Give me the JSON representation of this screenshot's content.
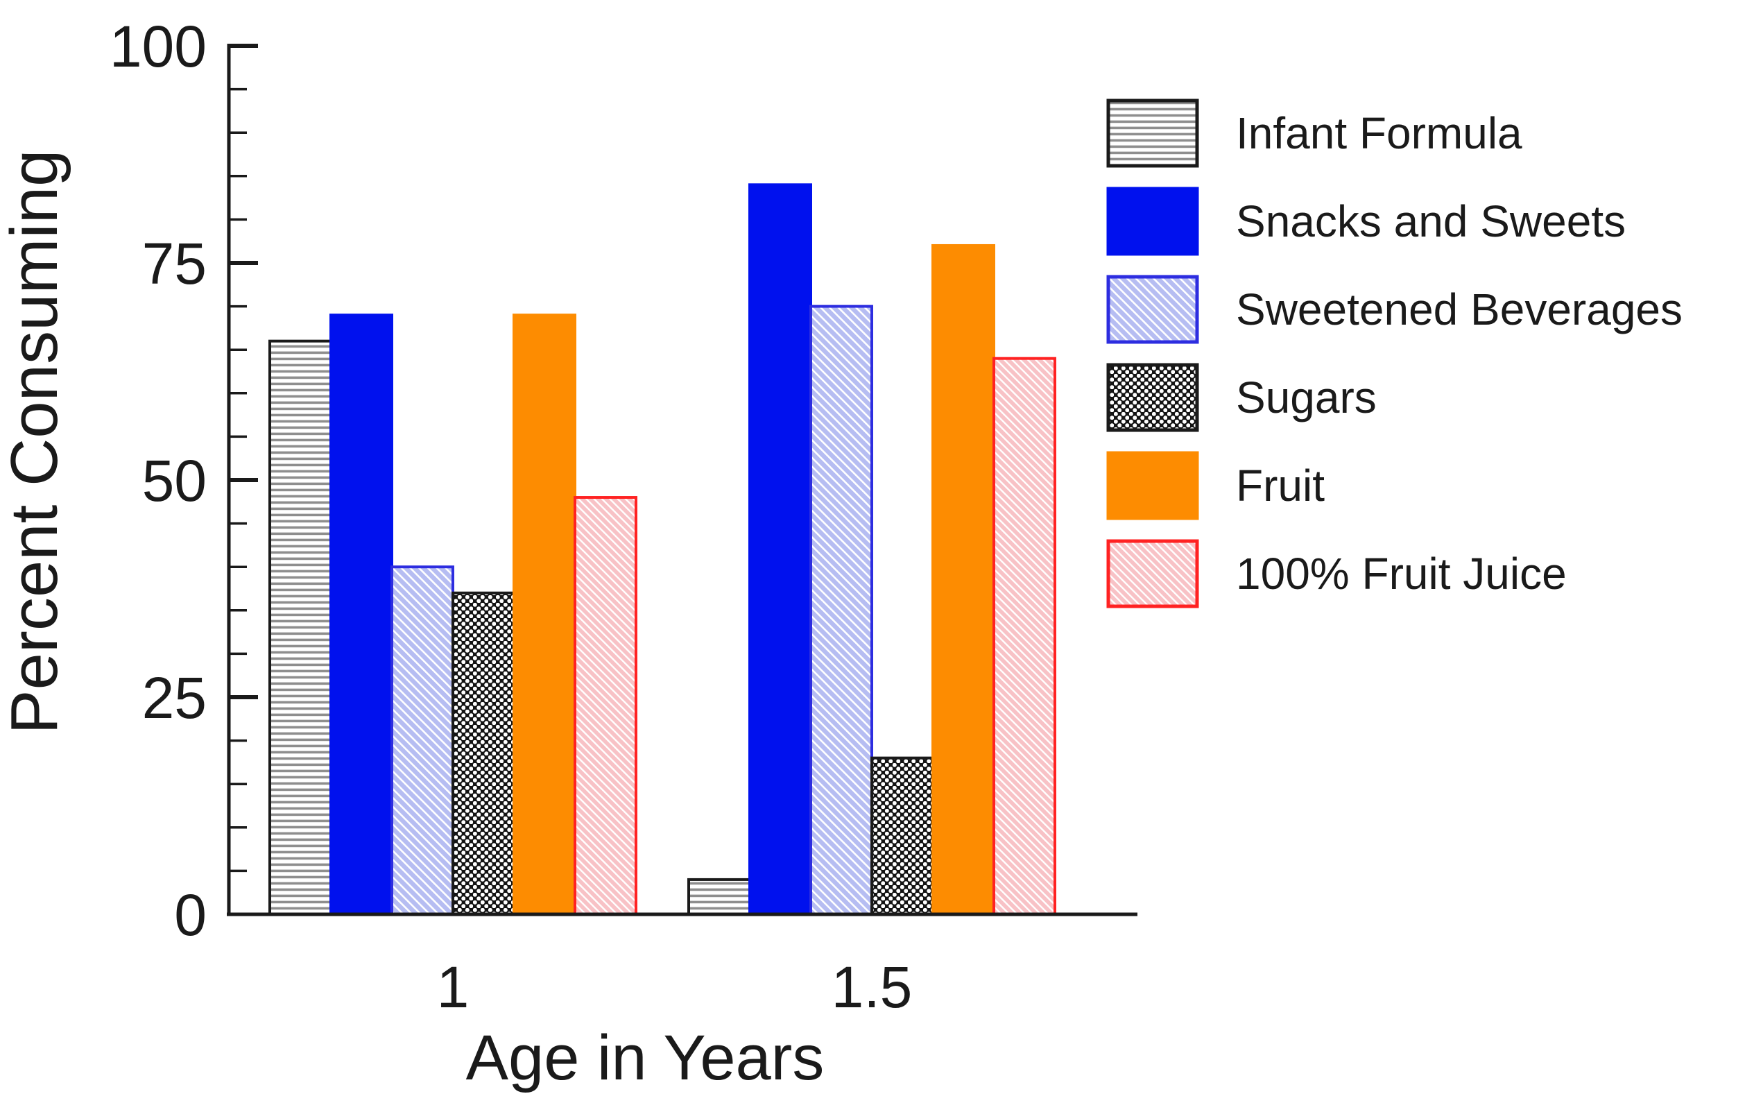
{
  "chart_data": {
    "type": "bar",
    "title": "",
    "xlabel": "Age in Years",
    "ylabel": "Percent Consuming",
    "categories": [
      "1",
      "1.5"
    ],
    "ylim": [
      0,
      100
    ],
    "ytick_major": [
      0,
      25,
      50,
      75,
      100
    ],
    "ytick_minor_step": 5,
    "grid": false,
    "legend_position": "right",
    "series": [
      {
        "name": "Infant Formula",
        "values": [
          66,
          4
        ],
        "fill": "hlines",
        "stroke": "#1a1a1a"
      },
      {
        "name": "Snacks and Sweets",
        "values": [
          69,
          84
        ],
        "fill": "#0011ee",
        "stroke": "#0011ee"
      },
      {
        "name": "Sweetened Beverages",
        "values": [
          40,
          70
        ],
        "fill": "bluehatch",
        "stroke": "#2d2de0"
      },
      {
        "name": "Sugars",
        "values": [
          37,
          18
        ],
        "fill": "dots",
        "stroke": "#1a1a1a"
      },
      {
        "name": "Fruit",
        "values": [
          69,
          77
        ],
        "fill": "#fd8c01",
        "stroke": "#fd8c01"
      },
      {
        "name": "100% Fruit Juice",
        "values": [
          48,
          64
        ],
        "fill": "pinkhatch",
        "stroke": "#ff2222"
      }
    ]
  },
  "colors": {
    "axis_and_text": "#1a1a1a",
    "snacks_blue": "#0011ee",
    "fruit_orange": "#fd8c01",
    "sweetened_beverage_fill": "#b6bdf2",
    "sweetened_beverage_border": "#2d2de0",
    "fruit_juice_fill": "#f8c2c6",
    "fruit_juice_border": "#ff2222",
    "infant_formula_stripe": "#8e8e8e",
    "sugars_pattern_bg": "#141414",
    "background": "#ffffff"
  }
}
